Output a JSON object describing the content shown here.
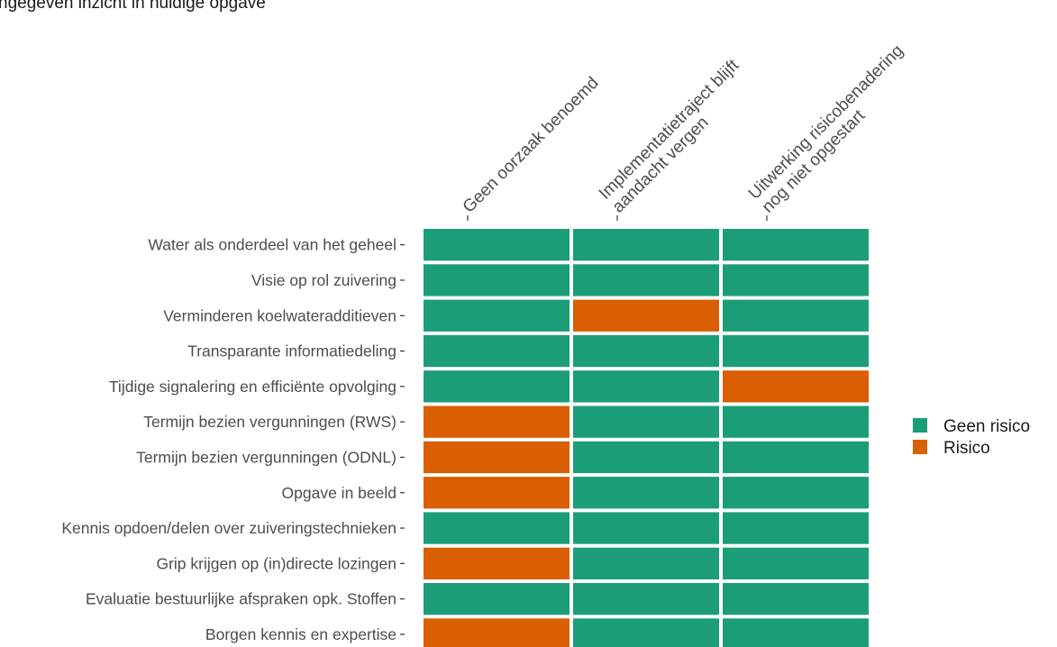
{
  "top_text": "ngegeven inzicht in huidige opgave",
  "chart_data": {
    "type": "heatmap",
    "title": "",
    "xlabel": "",
    "ylabel": "",
    "columns": [
      [
        "Geen oorzaak benoemd"
      ],
      [
        "Implementatietraject blijft",
        "aandacht vergen"
      ],
      [
        "Uitwerking risicobenadering",
        "nog niet opgestart"
      ]
    ],
    "rows": [
      "Water als onderdeel van het geheel",
      "Visie op rol zuivering",
      "Verminderen koelwateradditieven",
      "Transparante informatiedeling",
      "Tijdige signalering en efficiënte opvolging",
      "Termijn bezien vergunningen (RWS)",
      "Termijn bezien vergunningen (ODNL)",
      "Opgave in beeld",
      "Kennis opdoen/delen over zuiveringstechnieken",
      "Grip krijgen op (in)directe lozingen",
      "Evaluatie bestuurlijke afspraken opk. Stoffen",
      "Borgen kennis en expertise"
    ],
    "values": [
      [
        "Geen risico",
        "Geen risico",
        "Geen risico"
      ],
      [
        "Geen risico",
        "Geen risico",
        "Geen risico"
      ],
      [
        "Geen risico",
        "Risico",
        "Geen risico"
      ],
      [
        "Geen risico",
        "Geen risico",
        "Geen risico"
      ],
      [
        "Geen risico",
        "Geen risico",
        "Risico"
      ],
      [
        "Risico",
        "Geen risico",
        "Geen risico"
      ],
      [
        "Risico",
        "Geen risico",
        "Geen risico"
      ],
      [
        "Risico",
        "Geen risico",
        "Geen risico"
      ],
      [
        "Geen risico",
        "Geen risico",
        "Geen risico"
      ],
      [
        "Risico",
        "Geen risico",
        "Geen risico"
      ],
      [
        "Geen risico",
        "Geen risico",
        "Geen risico"
      ],
      [
        "Risico",
        "Geen risico",
        "Geen risico"
      ]
    ],
    "legend": [
      {
        "label": "Geen risico",
        "color": "#1b9e77"
      },
      {
        "label": "Risico",
        "color": "#d95f02"
      }
    ],
    "legend_position": "right",
    "grid": false
  }
}
